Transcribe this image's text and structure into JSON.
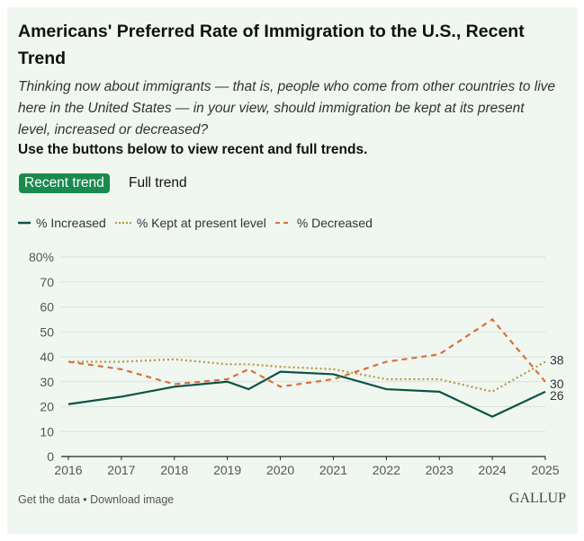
{
  "title": "Americans' Preferred Rate of Immigration to the U.S., Recent Trend",
  "subtitle": "Thinking now about immigrants — that is, people who come from other countries to live here in the United States — in your view, should immigration be kept at its present level, increased or decreased?",
  "instruction": "Use the buttons below to view recent and full trends.",
  "buttons": {
    "recent": "Recent trend",
    "full": "Full trend"
  },
  "footer": {
    "get_data": "Get the data",
    "separator": " • ",
    "download": "Download image"
  },
  "logo": "GALLUP",
  "chart_data": {
    "type": "line",
    "xlim": [
      2016,
      2025
    ],
    "ylim": [
      0,
      80
    ],
    "x_ticks": [
      "2016",
      "2017",
      "2018",
      "2019",
      "2020",
      "2021",
      "2022",
      "2023",
      "2024",
      "2025"
    ],
    "y_ticks": [
      "0",
      "10",
      "20",
      "30",
      "40",
      "50",
      "60",
      "70",
      "80%"
    ],
    "grid": true,
    "legend_placement": "top-left",
    "x": [
      2016,
      2017,
      2018,
      2019,
      2019.4,
      2020,
      2021,
      2022,
      2023,
      2024,
      2025
    ],
    "series": [
      {
        "name": "% Increased",
        "color": "#0b5345",
        "style": "solid",
        "values": [
          21,
          24,
          28,
          30,
          27,
          34,
          33,
          27,
          26,
          16,
          26
        ],
        "end_label": "26"
      },
      {
        "name": "% Kept at present level",
        "color": "#b8963e",
        "style": "dotted",
        "values": [
          38,
          38,
          39,
          37,
          37,
          36,
          35,
          31,
          31,
          26,
          38
        ],
        "end_label": "38"
      },
      {
        "name": "% Decreased",
        "color": "#d9703a",
        "style": "dashed",
        "values": [
          38,
          35,
          29,
          31,
          35,
          28,
          31,
          38,
          41,
          55,
          30
        ],
        "end_label": "30"
      }
    ]
  }
}
